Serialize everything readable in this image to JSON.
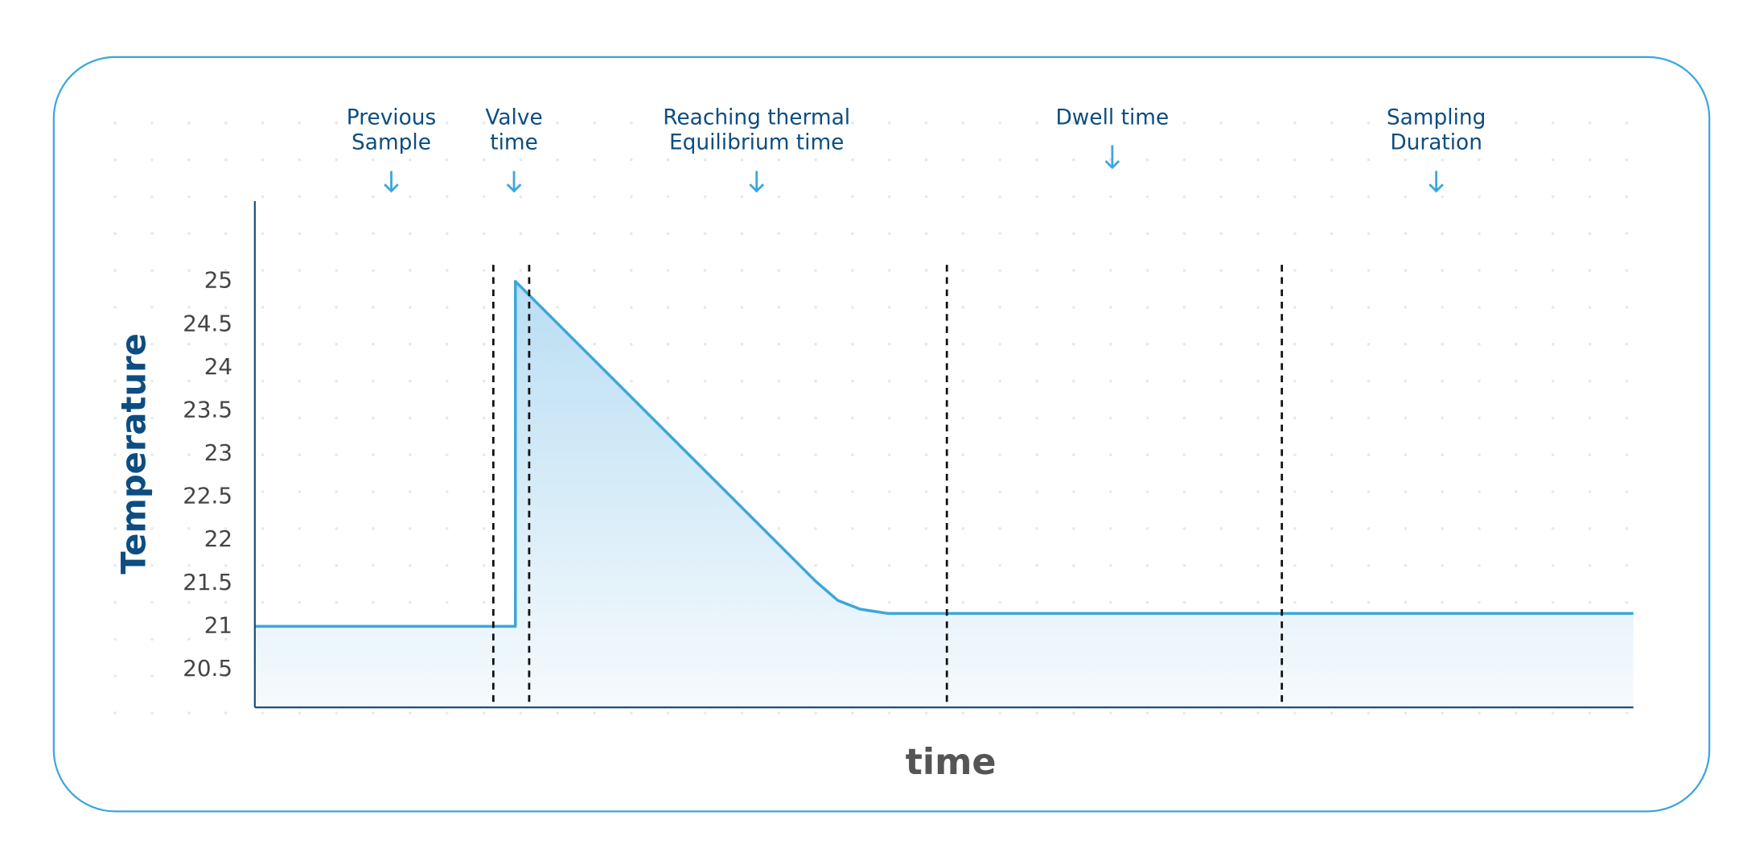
{
  "chart_data": {
    "type": "line",
    "ylabel": "Temperature",
    "xlabel": "time",
    "x": [
      0,
      18.9,
      18.9,
      40.7,
      42.3,
      43.9,
      45.9,
      100
    ],
    "values": [
      21,
      21,
      25,
      21.52,
      21.3,
      21.2,
      21.15,
      21.15
    ],
    "color": "#3ba6dd",
    "xlim": [
      0,
      100
    ],
    "ylim": [
      20.06,
      25.93
    ],
    "yticks": [
      20.5,
      21,
      21.5,
      22,
      22.5,
      23,
      23.5,
      24,
      24.5,
      25
    ],
    "vlines": [
      17.3,
      19.9,
      50.2,
      74.5
    ],
    "annotations": [
      {
        "lines": [
          "Previous",
          "Sample"
        ],
        "x": 9.9
      },
      {
        "lines": [
          "Valve",
          "time"
        ],
        "x": 18.8
      },
      {
        "lines": [
          "Reaching thermal",
          "Equilibrium time"
        ],
        "x": 36.4
      },
      {
        "lines": [
          "Dwell time"
        ],
        "x": 62.2
      },
      {
        "lines": [
          "Sampling",
          "Duration"
        ],
        "x": 85.7
      }
    ]
  }
}
